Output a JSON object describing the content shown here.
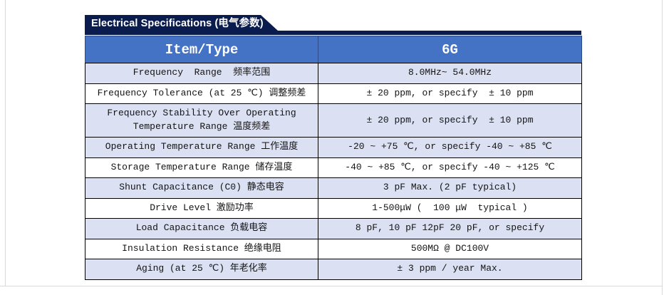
{
  "colors": {
    "navy": "#0a1c4d",
    "header-blue": "#4472c4",
    "row-shaded": "#dbe0f2",
    "border-black": "#000000",
    "page-edge": "#d9d9d9",
    "text": "#141414"
  },
  "section": {
    "title": "Electrical Specifications (电气参数)"
  },
  "table": {
    "header": {
      "item_col": "Item/Type",
      "value_col": "6G"
    },
    "rows": [
      {
        "item": "Frequency  Range  频率范围",
        "value": "8.0MHz~ 54.0MHz",
        "shaded": true,
        "tall": false
      },
      {
        "item": "Frequency Tolerance (at 25 ℃) 调整频差",
        "value": "± 20 ppm, or specify  ± 10 ppm",
        "shaded": false,
        "tall": false
      },
      {
        "item": "Frequency Stability Over Operating Temperature Range 温度频差",
        "value": "± 20 ppm, or specify  ± 10 ppm",
        "shaded": true,
        "tall": true
      },
      {
        "item": "Operating Temperature Range 工作温度",
        "value": "-20 ~ +75 ℃, or specify -40 ~ +85 ℃",
        "shaded": true,
        "tall": false
      },
      {
        "item": "Storage Temperature Range 储存温度",
        "value": "-40 ~ +85 ℃, or specify -40 ~ +125 ℃",
        "shaded": false,
        "tall": false
      },
      {
        "item": "Shunt Capacitance (C0) 静态电容",
        "value": "3 pF Max. (2 pF typical)",
        "shaded": true,
        "tall": false
      },
      {
        "item": "Drive Level 激励功率",
        "value": "1-500μW (  100 μW  typical )",
        "shaded": false,
        "tall": false
      },
      {
        "item": "Load Capacitance 负载电容",
        "value": "8 pF, 10 pF 12pF 20 pF, or specify",
        "shaded": true,
        "tall": false
      },
      {
        "item": "Insulation Resistance 绝缘电阻",
        "value": "500MΩ @ DC100V",
        "shaded": false,
        "tall": false
      },
      {
        "item": "Aging (at 25 ℃) 年老化率",
        "value": "± 3 ppm / year Max.",
        "shaded": true,
        "tall": false
      }
    ]
  }
}
